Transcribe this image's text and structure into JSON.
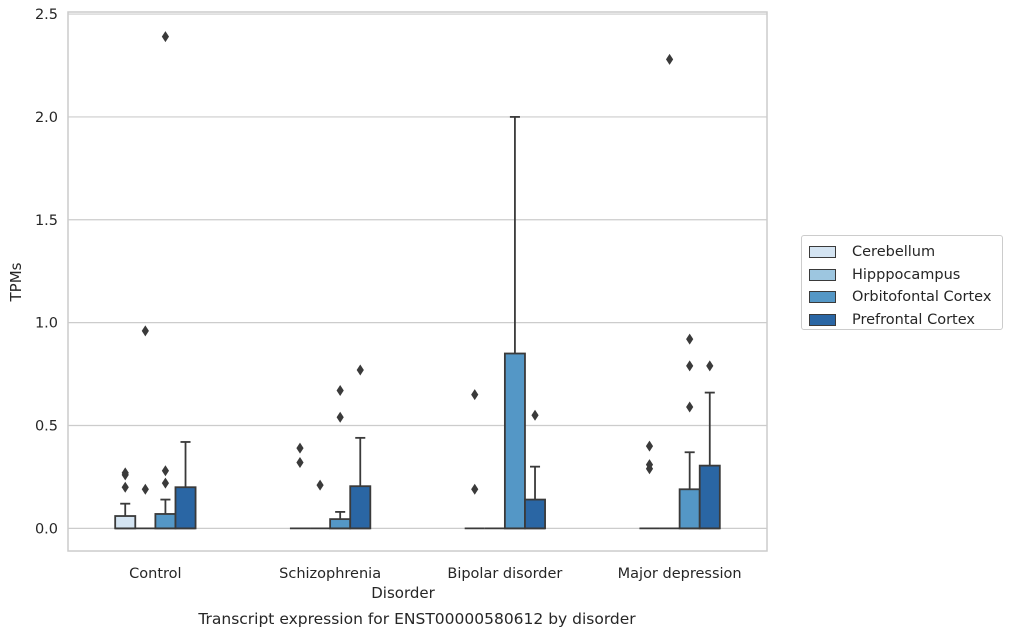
{
  "chart_data": {
    "type": "box",
    "caption": "Transcript expression for ENST00000580612 by disorder",
    "xlabel": "Disorder",
    "ylabel": "TPMs",
    "ylim": [
      -0.11,
      2.51
    ],
    "yticks": [
      "0.0",
      "0.5",
      "1.0",
      "1.5",
      "2.0",
      "2.5"
    ],
    "ytick_values": [
      0.0,
      0.5,
      1.0,
      1.5,
      2.0,
      2.5
    ],
    "categories": [
      "Control",
      "Schizophrenia",
      "Bipolar disorder",
      "Major depression"
    ],
    "grid": true,
    "legend_position": "right",
    "series": [
      {
        "name": "Cerebellum",
        "color": "#d4e4f2",
        "boxes": [
          {
            "q1": 0.0,
            "median": 0.0,
            "q3": 0.06,
            "whisker_low": 0.0,
            "whisker_high": 0.12,
            "outliers": [
              0.2,
              0.26,
              0.27
            ]
          },
          {
            "q1": 0.0,
            "median": 0.0,
            "q3": 0.0,
            "whisker_low": 0.0,
            "whisker_high": 0.0,
            "outliers": [
              0.32,
              0.39
            ]
          },
          {
            "q1": 0.0,
            "median": 0.0,
            "q3": 0.0,
            "whisker_low": 0.0,
            "whisker_high": 0.0,
            "outliers": [
              0.19,
              0.65
            ]
          },
          {
            "q1": 0.0,
            "median": 0.0,
            "q3": 0.0,
            "whisker_low": 0.0,
            "whisker_high": 0.0,
            "outliers": [
              0.29,
              0.31,
              0.4
            ]
          }
        ]
      },
      {
        "name": "Hipppocampus",
        "color": "#9dc6e0",
        "boxes": [
          {
            "q1": 0.0,
            "median": 0.0,
            "q3": 0.0,
            "whisker_low": 0.0,
            "whisker_high": 0.0,
            "outliers": [
              0.19,
              0.96
            ]
          },
          {
            "q1": 0.0,
            "median": 0.0,
            "q3": 0.0,
            "whisker_low": 0.0,
            "whisker_high": 0.0,
            "outliers": [
              0.21
            ]
          },
          {
            "q1": 0.0,
            "median": 0.0,
            "q3": 0.0,
            "whisker_low": 0.0,
            "whisker_high": 0.0,
            "outliers": []
          },
          {
            "q1": 0.0,
            "median": 0.0,
            "q3": 0.0,
            "whisker_low": 0.0,
            "whisker_high": 0.0,
            "outliers": [
              2.28
            ]
          }
        ]
      },
      {
        "name": "Orbitofontal Cortex",
        "color": "#5497c6",
        "boxes": [
          {
            "q1": 0.0,
            "median": 0.0,
            "q3": 0.07,
            "whisker_low": 0.0,
            "whisker_high": 0.14,
            "outliers": [
              0.22,
              0.28,
              2.39
            ]
          },
          {
            "q1": 0.0,
            "median": 0.0,
            "q3": 0.045,
            "whisker_low": 0.0,
            "whisker_high": 0.08,
            "outliers": [
              0.54,
              0.67
            ]
          },
          {
            "q1": 0.0,
            "median": 0.0,
            "q3": 0.85,
            "whisker_low": 0.0,
            "whisker_high": 2.0,
            "outliers": []
          },
          {
            "q1": 0.0,
            "median": 0.0,
            "q3": 0.19,
            "whisker_low": 0.0,
            "whisker_high": 0.37,
            "outliers": [
              0.59,
              0.79,
              0.92
            ]
          }
        ]
      },
      {
        "name": "Prefrontal Cortex",
        "color": "#2a66a4",
        "boxes": [
          {
            "q1": 0.0,
            "median": 0.0,
            "q3": 0.2,
            "whisker_low": 0.0,
            "whisker_high": 0.42,
            "outliers": []
          },
          {
            "q1": 0.0,
            "median": 0.0,
            "q3": 0.205,
            "whisker_low": 0.0,
            "whisker_high": 0.44,
            "outliers": [
              0.77
            ]
          },
          {
            "q1": 0.0,
            "median": 0.0,
            "q3": 0.14,
            "whisker_low": 0.0,
            "whisker_high": 0.3,
            "outliers": [
              0.55
            ]
          },
          {
            "q1": 0.0,
            "median": 0.0,
            "q3": 0.305,
            "whisker_low": 0.0,
            "whisker_high": 0.66,
            "outliers": [
              0.79
            ]
          }
        ]
      }
    ]
  }
}
